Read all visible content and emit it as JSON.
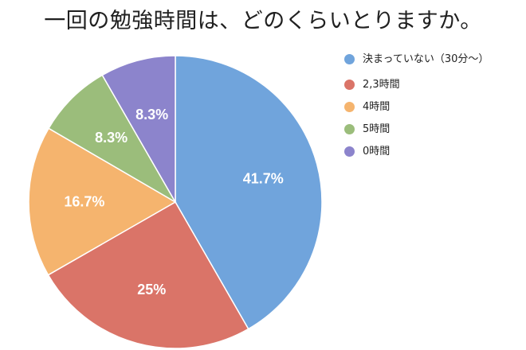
{
  "chart_data": {
    "type": "pie",
    "title": "一回の勉強時間は、どのくらいとりますか。",
    "legend_position": "right",
    "slices": [
      {
        "label": "決まっていない（30分〜）",
        "value": 41.7,
        "value_label": "41.7%",
        "color": "#70a4dc"
      },
      {
        "label": "2,3時間",
        "value": 25,
        "value_label": "25%",
        "color": "#da7468"
      },
      {
        "label": "4時間",
        "value": 16.7,
        "value_label": "16.7%",
        "color": "#f5b46e"
      },
      {
        "label": "5時間",
        "value": 8.3,
        "value_label": "8.3%",
        "color": "#9bbd7b"
      },
      {
        "label": "0時間",
        "value": 8.3,
        "value_label": "8.3%",
        "color": "#8c84cc"
      }
    ]
  }
}
